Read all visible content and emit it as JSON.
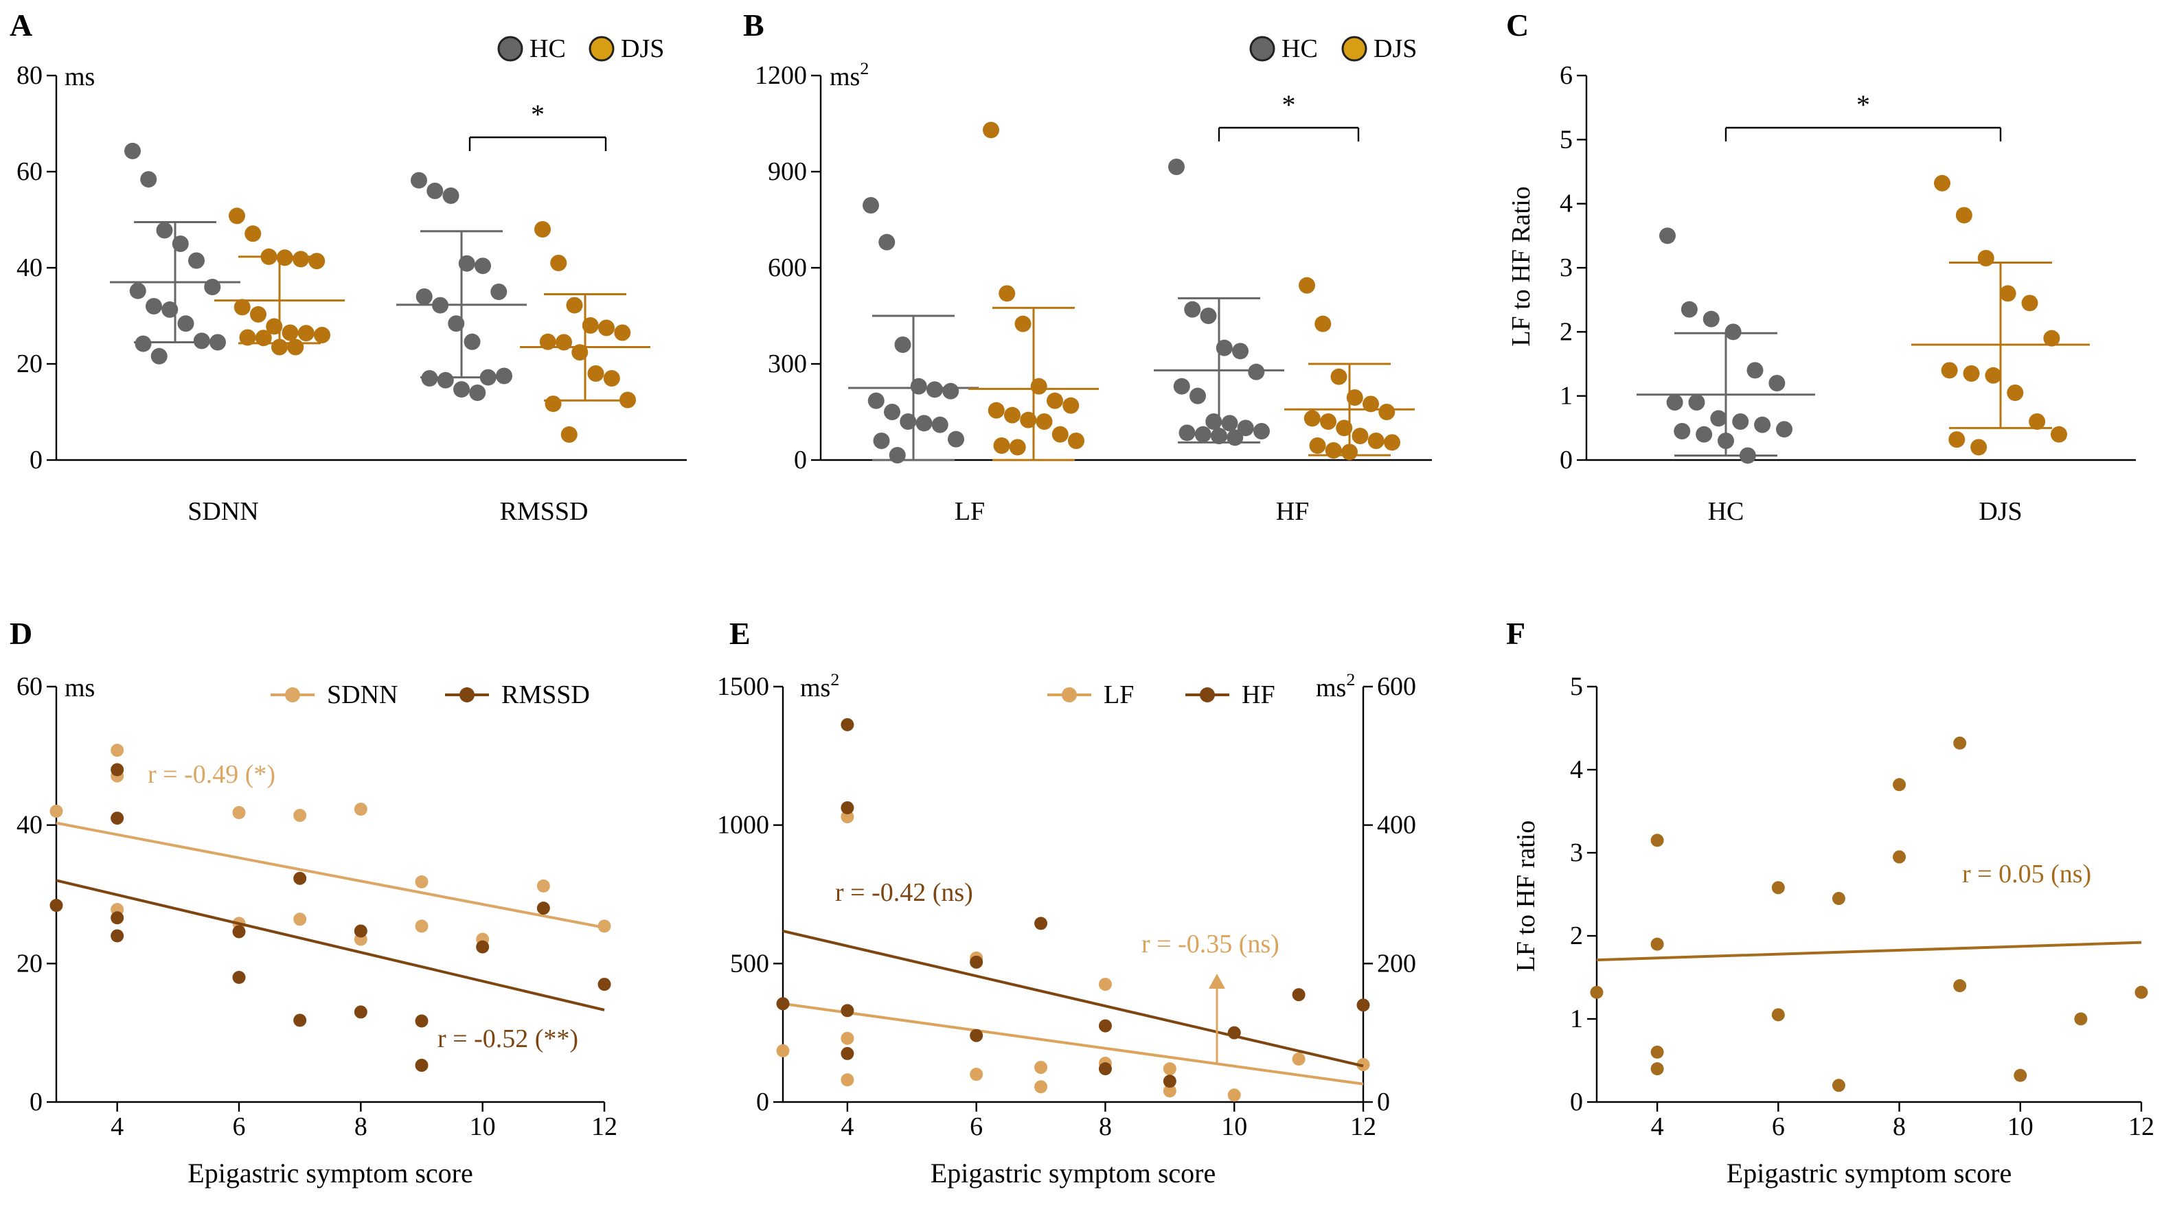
{
  "colors": {
    "hc": "#666666",
    "djs": "#b8740e",
    "djs_legend": "#d69d15",
    "sdnn": "#dca664",
    "rmssd": "#7e4511",
    "lf": "#dca35c",
    "hf": "#7e4511",
    "ratio": "#a66c1e"
  },
  "chart_data": [
    {
      "panel": "A",
      "type": "scatter",
      "unit": "ms",
      "ylim": [
        0,
        80
      ],
      "yticks": [
        "0",
        "20",
        "40",
        "60",
        "80"
      ],
      "categories": [
        "SDNN",
        "RMSSD"
      ],
      "legend": [
        "HC",
        "DJS"
      ],
      "significance": "*",
      "groups": [
        {
          "category": "SDNN",
          "series": "HC",
          "mean": 37,
          "sd_low": 24.5,
          "sd_high": 49.5,
          "points": [
            64.3,
            58.4,
            47.8,
            45.0,
            41.5,
            36.0,
            35.2,
            32.0,
            31.3,
            28.4,
            24.8,
            24.5,
            24.2,
            21.6
          ]
        },
        {
          "category": "SDNN",
          "series": "DJS",
          "mean": 33.2,
          "sd_low": 24.3,
          "sd_high": 42.3,
          "points": [
            50.8,
            47.1,
            42.3,
            42.1,
            41.8,
            41.4,
            31.8,
            30.3,
            27.8,
            26.5,
            26.4,
            26.0,
            25.5,
            25.4,
            23.5,
            23.5
          ]
        },
        {
          "category": "RMSSD",
          "series": "HC",
          "mean": 32.3,
          "sd_low": 17.2,
          "sd_high": 47.6,
          "points": [
            58.2,
            56.0,
            55.0,
            40.9,
            40.4,
            35.0,
            34.0,
            32.2,
            28.4,
            24.6,
            17.2,
            17.5,
            17.0,
            16.6,
            14.7,
            14.0
          ]
        },
        {
          "category": "RMSSD",
          "series": "DJS",
          "mean": 23.5,
          "sd_low": 12.4,
          "sd_high": 34.5,
          "points": [
            48.0,
            41.0,
            32.2,
            28.0,
            27.5,
            26.5,
            24.6,
            24.5,
            22.4,
            18.0,
            17.0,
            12.5,
            11.7,
            5.3
          ]
        }
      ]
    },
    {
      "panel": "B",
      "type": "scatter",
      "unit": "ms2",
      "ylim": [
        0,
        1200
      ],
      "yticks": [
        "0",
        "300",
        "600",
        "900",
        "1200"
      ],
      "categories": [
        "LF",
        "HF"
      ],
      "legend": [
        "HC",
        "DJS"
      ],
      "significance": "*",
      "groups": [
        {
          "category": "LF",
          "series": "HC",
          "mean": 225,
          "sd_low": 0,
          "sd_high": 450,
          "points": [
            795,
            680,
            360,
            230,
            220,
            215,
            185,
            150,
            120,
            115,
            110,
            65,
            60,
            15
          ]
        },
        {
          "category": "LF",
          "series": "DJS",
          "mean": 222,
          "sd_low": 0,
          "sd_high": 475,
          "points": [
            1030,
            520,
            425,
            230,
            185,
            170,
            155,
            140,
            125,
            120,
            80,
            60,
            45,
            40
          ]
        },
        {
          "category": "HF",
          "series": "HC",
          "mean": 280,
          "sd_low": 55,
          "sd_high": 505,
          "points": [
            915,
            470,
            450,
            350,
            340,
            275,
            230,
            200,
            120,
            115,
            100,
            90,
            85,
            80,
            75,
            70
          ]
        },
        {
          "category": "HF",
          "series": "DJS",
          "mean": 158,
          "sd_low": 15,
          "sd_high": 300,
          "points": [
            545,
            425,
            260,
            195,
            175,
            150,
            130,
            120,
            100,
            75,
            60,
            55,
            45,
            30,
            25
          ]
        }
      ]
    },
    {
      "panel": "C",
      "type": "scatter",
      "unit": "",
      "ylabel": "LF to HF Ratio",
      "ylim": [
        0,
        6
      ],
      "yticks": [
        "0",
        "1",
        "2",
        "3",
        "4",
        "5",
        "6"
      ],
      "categories": [
        "HC",
        "DJS"
      ],
      "significance": "*",
      "groups": [
        {
          "category": "HC",
          "series": "HC",
          "mean": 1.02,
          "sd_low": 0.07,
          "sd_high": 1.98,
          "points": [
            3.5,
            2.35,
            2.2,
            2.0,
            1.4,
            1.2,
            0.9,
            0.9,
            0.65,
            0.6,
            0.55,
            0.48,
            0.45,
            0.4,
            0.3,
            0.07
          ]
        },
        {
          "category": "DJS",
          "series": "DJS",
          "mean": 1.8,
          "sd_low": 0.5,
          "sd_high": 3.08,
          "points": [
            4.32,
            3.82,
            3.15,
            2.6,
            2.45,
            1.9,
            1.4,
            1.35,
            1.32,
            1.05,
            0.6,
            0.4,
            0.32,
            0.2
          ]
        }
      ]
    },
    {
      "panel": "D",
      "type": "scatter",
      "unit": "ms",
      "xlabel": "Epigastric symptom score",
      "xlim": [
        3,
        12
      ],
      "xticks": [
        "4",
        "6",
        "8",
        "10",
        "12"
      ],
      "ylim": [
        0,
        60
      ],
      "yticks": [
        "0",
        "20",
        "40",
        "60"
      ],
      "series": [
        {
          "name": "SDNN",
          "points": [
            [
              3,
              42
            ],
            [
              4,
              50.8
            ],
            [
              4,
              47.1
            ],
            [
              4,
              27.8
            ],
            [
              6,
              41.8
            ],
            [
              6,
              25.8
            ],
            [
              7,
              41.4
            ],
            [
              7,
              26.4
            ],
            [
              8,
              42.3
            ],
            [
              8,
              23.5
            ],
            [
              9,
              31.8
            ],
            [
              9,
              25.4
            ],
            [
              10,
              23.5
            ],
            [
              11,
              31.2
            ],
            [
              12,
              25.4
            ]
          ],
          "fit": [
            [
              3,
              40.3
            ],
            [
              12,
              25.2
            ]
          ],
          "annotation": "r = -0.49 (*)"
        },
        {
          "name": "RMSSD",
          "points": [
            [
              3,
              28.4
            ],
            [
              4,
              48.0
            ],
            [
              4,
              41.0
            ],
            [
              4,
              26.6
            ],
            [
              4,
              24.0
            ],
            [
              6,
              24.6
            ],
            [
              6,
              18.0
            ],
            [
              7,
              32.3
            ],
            [
              7,
              11.8
            ],
            [
              8,
              24.7
            ],
            [
              8,
              13.0
            ],
            [
              9,
              11.7
            ],
            [
              9,
              5.3
            ],
            [
              10,
              22.4
            ],
            [
              11,
              28.0
            ],
            [
              12,
              17.0
            ]
          ],
          "fit": [
            [
              3,
              32.0
            ],
            [
              12,
              13.3
            ]
          ],
          "annotation": "r = -0.52 (**)"
        }
      ]
    },
    {
      "panel": "E",
      "type": "scatter",
      "xlabel": "Epigastric symptom score",
      "xlim": [
        3,
        12
      ],
      "xticks": [
        "4",
        "6",
        "8",
        "10",
        "12"
      ],
      "left_axis": {
        "unit": "ms2",
        "ylim": [
          0,
          1500
        ],
        "yticks": [
          "0",
          "500",
          "1000",
          "1500"
        ]
      },
      "right_axis": {
        "unit": "ms2",
        "ylim": [
          0,
          600
        ],
        "yticks": [
          "0",
          "200",
          "400",
          "600"
        ]
      },
      "series": [
        {
          "name": "LF",
          "axis": "left",
          "points": [
            [
              3,
              185
            ],
            [
              4,
              1030
            ],
            [
              4,
              230
            ],
            [
              4,
              80
            ],
            [
              6,
              520
            ],
            [
              6,
              100
            ],
            [
              7,
              125
            ],
            [
              7,
              55
            ],
            [
              8,
              425
            ],
            [
              8,
              140
            ],
            [
              9,
              120
            ],
            [
              9,
              40
            ],
            [
              10,
              25
            ],
            [
              11,
              155
            ],
            [
              12,
              135
            ]
          ],
          "fit": [
            [
              3,
              355
            ],
            [
              12,
              65
            ]
          ],
          "annotation": "r = -0.35 (ns)"
        },
        {
          "name": "HF",
          "axis": "right",
          "points": [
            [
              3,
              142
            ],
            [
              4,
              545
            ],
            [
              4,
              425
            ],
            [
              4,
              132
            ],
            [
              4,
              70
            ],
            [
              6,
              202
            ],
            [
              6,
              96
            ],
            [
              7,
              258
            ],
            [
              8,
              110
            ],
            [
              8,
              48
            ],
            [
              9,
              30
            ],
            [
              10,
              100
            ],
            [
              11,
              155
            ],
            [
              12,
              140
            ]
          ],
          "fit": [
            [
              3,
              247
            ],
            [
              12,
              52
            ]
          ],
          "annotation": "r = -0.42 (ns)"
        }
      ]
    },
    {
      "panel": "F",
      "type": "scatter",
      "xlabel": "Epigastric symptom score",
      "ylabel": "LF to HF ratio",
      "xlim": [
        3,
        12
      ],
      "xticks": [
        "4",
        "6",
        "8",
        "10",
        "12"
      ],
      "ylim": [
        0,
        5
      ],
      "yticks": [
        "0",
        "1",
        "2",
        "3",
        "4",
        "5"
      ],
      "series": [
        {
          "name": "LF to HF ratio",
          "points": [
            [
              3,
              1.32
            ],
            [
              4,
              3.15
            ],
            [
              4,
              1.9
            ],
            [
              4,
              0.6
            ],
            [
              4,
              0.4
            ],
            [
              6,
              2.58
            ],
            [
              6,
              1.05
            ],
            [
              7,
              2.45
            ],
            [
              7,
              0.2
            ],
            [
              8,
              3.82
            ],
            [
              8,
              2.95
            ],
            [
              9,
              4.32
            ],
            [
              9,
              1.4
            ],
            [
              10,
              0.32
            ],
            [
              11,
              1.0
            ],
            [
              12,
              1.32
            ]
          ],
          "fit": [
            [
              3,
              1.71
            ],
            [
              12,
              1.92
            ]
          ],
          "annotation": "r = 0.05 (ns)"
        }
      ]
    }
  ]
}
